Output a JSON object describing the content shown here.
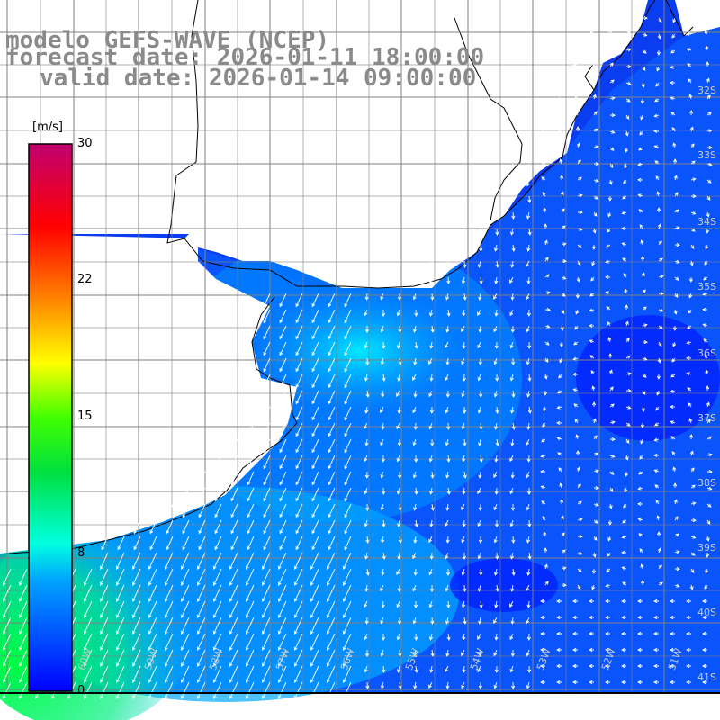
{
  "header": {
    "model": "modelo GEFS-WAVE (NCEP)",
    "forecast": "forecast date: 2026-01-11 18:00:00",
    "valid": "valid date: 2026-01-14 09:00:00"
  },
  "colorbar": {
    "unit": "[m/s]",
    "ticks": [
      {
        "label": "30",
        "value": 30
      },
      {
        "label": "22",
        "value": 22
      },
      {
        "label": "15",
        "value": 15
      },
      {
        "label": "8",
        "value": 8
      },
      {
        "label": "0",
        "value": 0
      }
    ],
    "colors": [
      "#0000ff",
      "#00c8ff",
      "#00ffd0",
      "#00ff00",
      "#ffff00",
      "#ff8000",
      "#ff0000",
      "#c0006a"
    ]
  },
  "grid": {
    "lat_labels": [
      "32S",
      "33S",
      "34S",
      "35S",
      "36S",
      "37S",
      "38S",
      "39S",
      "40S",
      "41S"
    ],
    "lon_labels": [
      "60W",
      "59W",
      "58W",
      "57W",
      "56W",
      "55W",
      "54W",
      "53W",
      "52W",
      "51W"
    ]
  }
}
